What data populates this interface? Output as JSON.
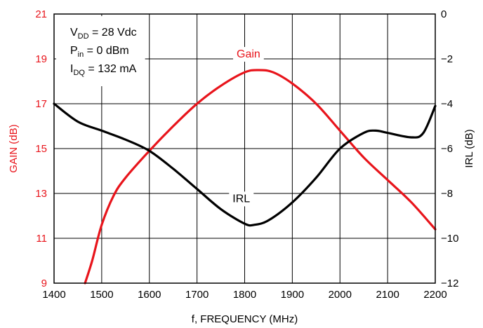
{
  "chart_data": {
    "type": "line",
    "xlabel": "f, FREQUENCY (MHz)",
    "ylabel_left": "GAIN (dB)",
    "ylabel_right": "IRL (dB)",
    "xlim": [
      1400,
      2200
    ],
    "xticks": [
      1400,
      1500,
      1600,
      1700,
      1800,
      1900,
      2000,
      2100,
      2200
    ],
    "ylim_left": [
      9,
      21
    ],
    "yticks_left": [
      9,
      11,
      13,
      15,
      17,
      19,
      21
    ],
    "ylim_right": [
      -12,
      0
    ],
    "yticks_right": [
      -12,
      -10,
      -8,
      -6,
      -4,
      -2,
      0
    ],
    "grid": true,
    "colors": {
      "gain": "#e8141b",
      "irl": "#000000",
      "left_axis": "#e8141b",
      "right_axis": "#000000"
    },
    "conditions": [
      {
        "base": "V",
        "sub": "DD",
        "rest": " = 28 Vdc"
      },
      {
        "base": "P",
        "sub": "in",
        "rest": " = 0 dBm"
      },
      {
        "base": "I",
        "sub": "DQ",
        "rest": " = 132 mA"
      }
    ],
    "series": [
      {
        "name": "Gain",
        "axis": "left",
        "x": [
          1465,
          1480,
          1500,
          1525,
          1550,
          1600,
          1650,
          1700,
          1750,
          1800,
          1830,
          1860,
          1900,
          1950,
          2000,
          2050,
          2100,
          2150,
          2200
        ],
        "y": [
          9.0,
          10.0,
          11.6,
          12.9,
          13.7,
          14.9,
          16.0,
          17.0,
          17.8,
          18.4,
          18.5,
          18.4,
          17.9,
          17.0,
          15.8,
          14.6,
          13.6,
          12.6,
          11.4
        ]
      },
      {
        "name": "IRL",
        "axis": "right",
        "x": [
          1400,
          1450,
          1500,
          1550,
          1600,
          1650,
          1700,
          1750,
          1800,
          1820,
          1850,
          1900,
          1950,
          2000,
          2050,
          2075,
          2100,
          2150,
          2175,
          2200
        ],
        "y": [
          -4.0,
          -4.8,
          -5.2,
          -5.6,
          -6.1,
          -6.9,
          -7.8,
          -8.7,
          -9.35,
          -9.4,
          -9.2,
          -8.4,
          -7.3,
          -6.0,
          -5.3,
          -5.2,
          -5.3,
          -5.5,
          -5.3,
          -4.1
        ]
      }
    ]
  }
}
